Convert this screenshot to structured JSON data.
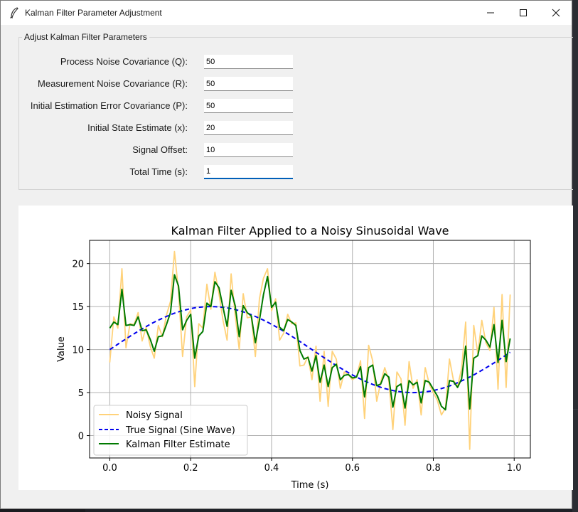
{
  "window": {
    "title": "Kalman Filter Parameter Adjustment"
  },
  "form": {
    "legend": "Adjust Kalman Filter Parameters",
    "fields": [
      {
        "label": "Process Noise Covariance (Q):",
        "value": "50"
      },
      {
        "label": "Measurement Noise Covariance (R):",
        "value": "50"
      },
      {
        "label": "Initial Estimation Error Covariance (P):",
        "value": "50"
      },
      {
        "label": "Initial State Estimate (x):",
        "value": "20"
      },
      {
        "label": "Signal Offset:",
        "value": "10"
      },
      {
        "label": "Total Time (s):",
        "value": "1"
      }
    ]
  },
  "colors": {
    "noisy": "#ffd27a",
    "true": "#0000ee",
    "kalman": "#007a00"
  },
  "chart_data": {
    "type": "line",
    "title": "Kalman Filter Applied to a Noisy Sinusoidal Wave",
    "xlabel": "Time (s)",
    "ylabel": "Value",
    "xlim": [
      -0.05,
      1.04
    ],
    "ylim": [
      -2.6,
      22.7
    ],
    "xticks": [
      "0.0",
      "0.2",
      "0.4",
      "0.6",
      "0.8",
      "1.0"
    ],
    "yticks": [
      "0",
      "5",
      "10",
      "15",
      "20"
    ],
    "grid": true,
    "legend_position": "lower-left",
    "x": [
      0.0,
      0.01,
      0.02,
      0.03,
      0.04,
      0.05,
      0.06,
      0.07,
      0.08,
      0.09,
      0.1,
      0.11,
      0.12,
      0.13,
      0.14,
      0.15,
      0.16,
      0.17,
      0.18,
      0.19,
      0.2,
      0.21,
      0.22,
      0.23,
      0.24,
      0.25,
      0.26,
      0.27,
      0.28,
      0.29,
      0.3,
      0.31,
      0.32,
      0.33,
      0.34,
      0.35,
      0.36,
      0.37,
      0.38,
      0.39,
      0.4,
      0.41,
      0.42,
      0.43,
      0.44,
      0.45,
      0.46,
      0.47,
      0.48,
      0.49,
      0.5,
      0.51,
      0.52,
      0.53,
      0.54,
      0.55,
      0.56,
      0.57,
      0.58,
      0.59,
      0.6,
      0.61,
      0.62,
      0.63,
      0.64,
      0.65,
      0.66,
      0.67,
      0.68,
      0.69,
      0.7,
      0.71,
      0.72,
      0.73,
      0.74,
      0.75,
      0.76,
      0.77,
      0.78,
      0.79,
      0.8,
      0.81,
      0.82,
      0.83,
      0.84,
      0.85,
      0.86,
      0.87,
      0.88,
      0.89,
      0.9,
      0.91,
      0.92,
      0.93,
      0.94,
      0.95,
      0.96,
      0.97,
      0.98,
      0.99
    ],
    "series": [
      {
        "name": "Noisy Signal",
        "values": [
          8.5,
          13.8,
          12.5,
          19.4,
          10.2,
          13.0,
          12.9,
          14.3,
          11.0,
          12.6,
          10.4,
          9.0,
          12.8,
          11.5,
          14.0,
          15.6,
          21.4,
          16.8,
          9.2,
          13.8,
          14.6,
          5.7,
          13.0,
          12.5,
          17.6,
          14.7,
          19.0,
          16.5,
          13.4,
          11.1,
          18.8,
          14.0,
          10.0,
          16.5,
          13.7,
          13.8,
          9.2,
          15.9,
          18.3,
          19.4,
          14.5,
          15.9,
          11.1,
          11.9,
          14.1,
          13.0,
          13.1,
          8.1,
          8.2,
          9.2,
          6.5,
          10.4,
          4.0,
          9.8,
          3.4,
          9.8,
          8.9,
          5.5,
          7.4,
          7.1,
          6.5,
          6.8,
          8.7,
          2.0,
          10.5,
          8.7,
          4.0,
          6.2,
          7.9,
          6.4,
          0.7,
          7.4,
          6.6,
          1.2,
          8.6,
          5.5,
          6.5,
          2.4,
          7.9,
          6.0,
          5.0,
          4.1,
          2.4,
          3.2,
          8.9,
          6.4,
          5.7,
          7.8,
          13.2,
          -1.6,
          12.8,
          9.5,
          13.4,
          10.8,
          9.9,
          14.9,
          5.4,
          16.4,
          5.6,
          16.4
        ]
      },
      {
        "name": "True Signal (Sine Wave)",
        "values": [
          10.0,
          10.31,
          10.63,
          10.94,
          11.24,
          11.55,
          11.84,
          12.13,
          12.41,
          12.68,
          12.94,
          13.19,
          13.42,
          13.64,
          13.85,
          14.05,
          14.23,
          14.38,
          14.53,
          14.65,
          14.76,
          14.85,
          14.91,
          14.96,
          14.99,
          15.0,
          14.99,
          14.96,
          14.91,
          14.85,
          14.76,
          14.65,
          14.53,
          14.38,
          14.23,
          14.05,
          13.85,
          13.64,
          13.42,
          13.19,
          12.94,
          12.68,
          12.41,
          12.13,
          11.84,
          11.55,
          11.24,
          10.94,
          10.63,
          10.31,
          10.0,
          9.69,
          9.37,
          9.06,
          8.76,
          8.45,
          8.16,
          7.87,
          7.59,
          7.32,
          7.06,
          6.81,
          6.58,
          6.36,
          6.15,
          5.95,
          5.77,
          5.62,
          5.47,
          5.35,
          5.24,
          5.15,
          5.09,
          5.04,
          5.01,
          5.0,
          5.01,
          5.04,
          5.09,
          5.15,
          5.24,
          5.35,
          5.47,
          5.62,
          5.77,
          5.95,
          6.15,
          6.36,
          6.58,
          6.81,
          7.06,
          7.32,
          7.59,
          7.87,
          8.16,
          8.45,
          8.76,
          9.06,
          9.37,
          9.69
        ]
      },
      {
        "name": "Kalman Filter Estimate",
        "values": [
          12.5,
          13.2,
          12.9,
          17.0,
          12.8,
          12.9,
          12.8,
          13.8,
          12.2,
          12.3,
          11.2,
          9.8,
          11.5,
          11.6,
          12.9,
          14.3,
          18.7,
          17.4,
          12.3,
          13.4,
          14.1,
          9.0,
          11.6,
          12.1,
          15.4,
          15.0,
          17.9,
          17.2,
          14.9,
          12.7,
          16.9,
          15.1,
          11.5,
          15.1,
          14.3,
          13.9,
          10.8,
          13.4,
          16.4,
          18.5,
          14.9,
          15.5,
          12.6,
          12.2,
          13.5,
          13.2,
          12.8,
          9.9,
          8.9,
          9.1,
          7.5,
          9.3,
          6.2,
          8.2,
          5.7,
          7.9,
          8.3,
          6.5,
          7.0,
          7.1,
          6.7,
          6.8,
          8.0,
          4.5,
          7.9,
          8.2,
          5.8,
          6.0,
          7.2,
          6.8,
          3.3,
          5.7,
          6.0,
          3.2,
          6.4,
          5.9,
          6.2,
          3.8,
          6.4,
          6.2,
          5.4,
          4.6,
          3.4,
          3.0,
          6.4,
          6.3,
          5.6,
          6.6,
          10.4,
          3.1,
          9.0,
          9.3,
          11.6,
          11.1,
          10.3,
          12.9,
          8.5,
          13.4,
          8.6,
          11.3
        ]
      }
    ]
  }
}
